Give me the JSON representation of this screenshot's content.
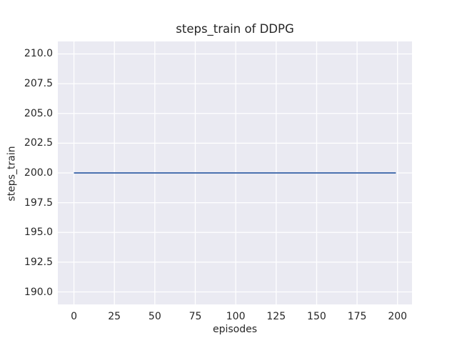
{
  "figure": {
    "background": "#FFFFFF"
  },
  "chart_data": {
    "type": "line",
    "title": "steps_train of DDPG",
    "xlabel": "episodes",
    "ylabel": "steps_train",
    "xlim": [
      -9.95,
      208.95
    ],
    "ylim": [
      188.95,
      211.05
    ],
    "x_ticks": [
      0,
      25,
      50,
      75,
      100,
      125,
      150,
      175,
      200
    ],
    "x_tick_labels": [
      "0",
      "25",
      "50",
      "75",
      "100",
      "125",
      "150",
      "175",
      "200"
    ],
    "y_ticks": [
      190.0,
      192.5,
      195.0,
      197.5,
      200.0,
      202.5,
      205.0,
      207.5,
      210.0
    ],
    "y_tick_labels": [
      "190.0",
      "192.5",
      "195.0",
      "197.5",
      "200.0",
      "202.5",
      "205.0",
      "207.5",
      "210.0"
    ],
    "grid": true,
    "legend_position": "none",
    "plot_background": "#EAEAF2",
    "grid_color": "#FFFFFF",
    "text_color": "#262626",
    "series": [
      {
        "name": "steps_train",
        "color": "#4C72B0",
        "x": [
          0,
          199
        ],
        "y": [
          200,
          200
        ]
      }
    ]
  }
}
